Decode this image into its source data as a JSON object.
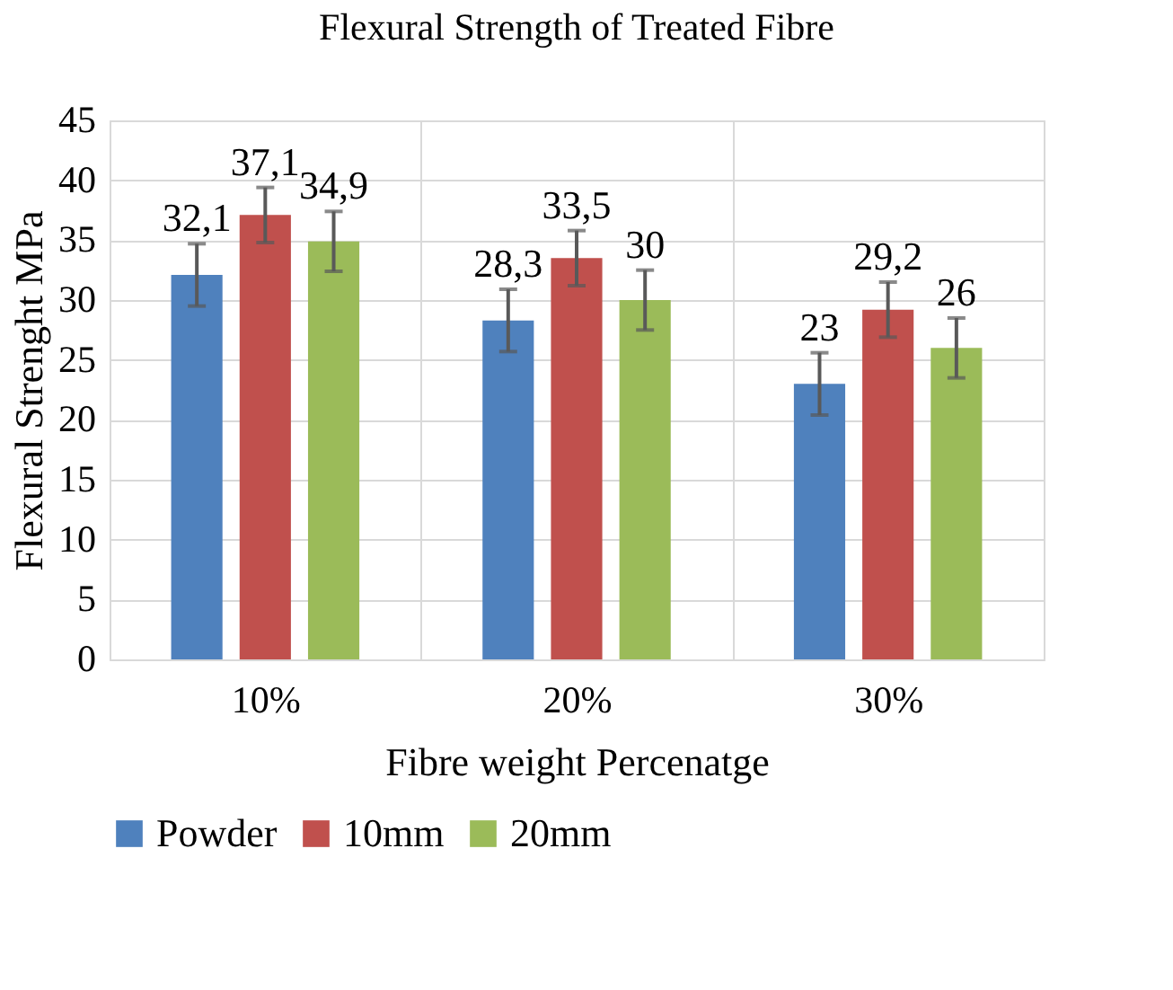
{
  "chart_data": {
    "type": "bar",
    "title": "Flexural Strength of Treated Fibre",
    "xlabel": "Fibre weight Percenatge",
    "ylabel": "Flexural Strenght MPa",
    "categories": [
      "10%",
      "20%",
      "30%"
    ],
    "series": [
      {
        "name": "Powder",
        "color": "#4f81bd",
        "values": [
          32.1,
          28.3,
          23
        ],
        "errors": [
          2.6,
          2.6,
          2.6
        ],
        "value_labels": [
          "32,1",
          "28,3",
          "23"
        ]
      },
      {
        "name": "10mm",
        "color": "#c0504d",
        "values": [
          37.1,
          33.5,
          29.2
        ],
        "errors": [
          2.3,
          2.3,
          2.3
        ],
        "value_labels": [
          "37,1",
          "33,5",
          "29,2"
        ]
      },
      {
        "name": "20mm",
        "color": "#9bbb59",
        "values": [
          34.9,
          30,
          26
        ],
        "errors": [
          2.5,
          2.5,
          2.5
        ],
        "value_labels": [
          "34,9",
          "30",
          "26"
        ]
      }
    ],
    "ylim": [
      0,
      45
    ],
    "yticks": [
      0,
      5,
      10,
      15,
      20,
      25,
      30,
      35,
      40,
      45
    ],
    "grid": true,
    "legend": "bottom"
  }
}
